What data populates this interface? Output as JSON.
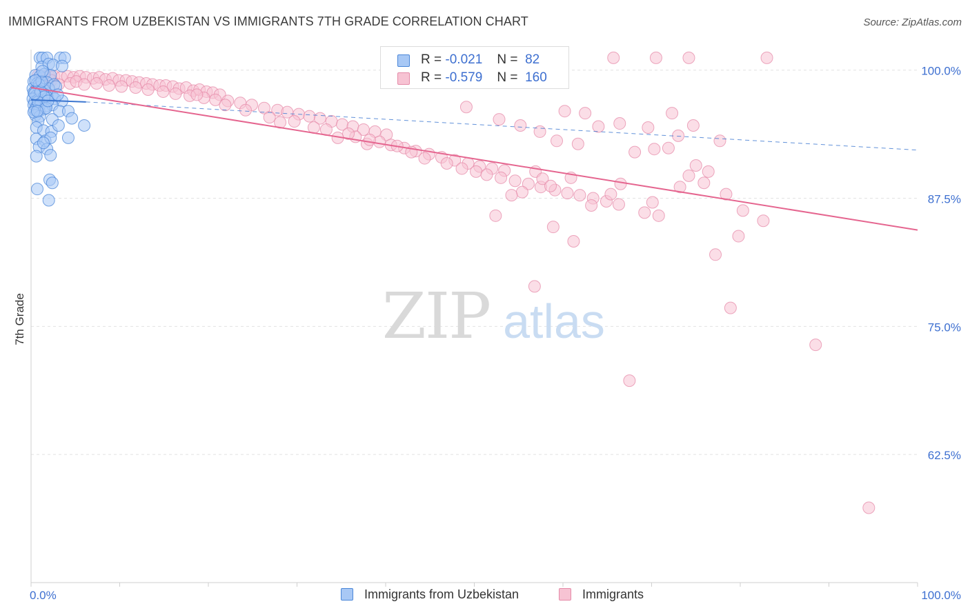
{
  "title": "IMMIGRANTS FROM UZBEKISTAN VS IMMIGRANTS 7TH GRADE CORRELATION CHART",
  "source": "Source: ZipAtlas.com",
  "legend": {
    "rows": [
      {
        "r_label": "R =",
        "r_value": "-0.021",
        "n_label": "N =",
        "n_value": "82"
      },
      {
        "r_label": "R =",
        "r_value": "-0.579",
        "n_label": "N =",
        "n_value": "160"
      }
    ]
  },
  "bottom_legend": [
    "Immigrants from Uzbekistan",
    "Immigrants"
  ],
  "colors": {
    "blue_fill": "#a8c8f5",
    "blue_stroke": "#4a86d8",
    "blue_line": "#3a75d0",
    "pink_fill": "#f7c3d3",
    "pink_stroke": "#e58aa8",
    "pink_line": "#e5658f",
    "tick_label": "#3d6fd0",
    "grid": "#e2e2e2"
  },
  "chart_data": {
    "type": "scatter",
    "title": "IMMIGRANTS FROM UZBEKISTAN VS IMMIGRANTS 7TH GRADE CORRELATION CHART",
    "xlabel": "",
    "ylabel": "7th Grade",
    "xlim": [
      0,
      100
    ],
    "ylim": [
      50,
      102
    ],
    "x_tick_labels": [
      "0.0%",
      "100.0%"
    ],
    "y_ticks": [
      100,
      87.5,
      75,
      62.5
    ],
    "y_tick_labels": [
      "100.0%",
      "87.5%",
      "75.0%",
      "62.5%"
    ],
    "grid": "horizontal dashed",
    "watermark": "ZIPatlas",
    "series": [
      {
        "name": "Immigrants from Uzbekistan",
        "r": -0.021,
        "n": 82,
        "trend": {
          "x": [
            0,
            6.2
          ],
          "y": [
            97.1,
            96.9
          ],
          "x_ext": [
            6.2,
            100
          ],
          "y_ext": [
            96.9,
            92.2
          ]
        },
        "points": [
          [
            1.0,
            101.2
          ],
          [
            1.3,
            101.2
          ],
          [
            1.8,
            101.2
          ],
          [
            3.3,
            101.2
          ],
          [
            3.8,
            101.2
          ],
          [
            1.2,
            100.3
          ],
          [
            2.0,
            100.6
          ],
          [
            2.5,
            100.5
          ],
          [
            3.5,
            100.4
          ],
          [
            0.5,
            99.5
          ],
          [
            1.0,
            99.4
          ],
          [
            1.5,
            99.6
          ],
          [
            2.2,
            99.5
          ],
          [
            0.3,
            98.9
          ],
          [
            0.7,
            98.7
          ],
          [
            1.2,
            98.5
          ],
          [
            1.8,
            98.8
          ],
          [
            2.6,
            98.6
          ],
          [
            0.2,
            98.2
          ],
          [
            0.5,
            98.0
          ],
          [
            0.9,
            98.3
          ],
          [
            1.4,
            98.1
          ],
          [
            2.0,
            98.2
          ],
          [
            0.3,
            97.8
          ],
          [
            0.6,
            97.5
          ],
          [
            1.0,
            97.7
          ],
          [
            1.6,
            97.6
          ],
          [
            2.4,
            97.5
          ],
          [
            0.2,
            97.2
          ],
          [
            0.4,
            96.9
          ],
          [
            0.8,
            97.1
          ],
          [
            1.3,
            97.0
          ],
          [
            1.9,
            97.3
          ],
          [
            2.7,
            97.2
          ],
          [
            3.5,
            97.0
          ],
          [
            0.3,
            96.6
          ],
          [
            0.6,
            96.4
          ],
          [
            1.1,
            96.7
          ],
          [
            1.7,
            96.5
          ],
          [
            2.4,
            96.6
          ],
          [
            0.4,
            96.1
          ],
          [
            0.9,
            96.0
          ],
          [
            1.5,
            96.2
          ],
          [
            0.5,
            95.6
          ],
          [
            1.0,
            95.5
          ],
          [
            3.2,
            96.0
          ],
          [
            4.2,
            96.0
          ],
          [
            0.8,
            95.0
          ],
          [
            2.4,
            95.2
          ],
          [
            4.6,
            95.3
          ],
          [
            0.6,
            94.4
          ],
          [
            1.4,
            94.1
          ],
          [
            2.3,
            94.0
          ],
          [
            3.1,
            94.6
          ],
          [
            6.0,
            94.6
          ],
          [
            0.6,
            93.3
          ],
          [
            1.6,
            93.1
          ],
          [
            2.2,
            93.4
          ],
          [
            4.2,
            93.4
          ],
          [
            0.9,
            92.5
          ],
          [
            1.8,
            92.3
          ],
          [
            0.6,
            91.6
          ],
          [
            2.2,
            91.7
          ],
          [
            1.4,
            92.9
          ],
          [
            2.1,
            89.3
          ],
          [
            2.4,
            89.0
          ],
          [
            0.7,
            88.4
          ],
          [
            2.0,
            87.3
          ],
          [
            0.9,
            98.6
          ],
          [
            1.1,
            97.9
          ],
          [
            1.5,
            97.4
          ],
          [
            0.8,
            96.9
          ],
          [
            0.4,
            97.7
          ],
          [
            1.7,
            96.3
          ],
          [
            0.3,
            95.9
          ],
          [
            2.8,
            98.4
          ],
          [
            1.2,
            98.9
          ],
          [
            0.5,
            99.0
          ],
          [
            1.9,
            97.0
          ],
          [
            3.0,
            97.6
          ],
          [
            0.7,
            96.0
          ],
          [
            1.3,
            99.9
          ]
        ]
      },
      {
        "name": "Immigrants",
        "r": -0.579,
        "n": 160,
        "trend": {
          "x": [
            0,
            100
          ],
          "y": [
            98.3,
            84.4
          ]
        },
        "points": [
          [
            65.7,
            101.2
          ],
          [
            70.5,
            101.2
          ],
          [
            74.2,
            101.2
          ],
          [
            83.0,
            101.2
          ],
          [
            0.8,
            99.5
          ],
          [
            1.5,
            99.4
          ],
          [
            2.0,
            99.5
          ],
          [
            2.6,
            99.4
          ],
          [
            3.4,
            99.3
          ],
          [
            4.1,
            99.4
          ],
          [
            4.8,
            99.3
          ],
          [
            5.5,
            99.4
          ],
          [
            6.2,
            99.3
          ],
          [
            7.0,
            99.2
          ],
          [
            7.7,
            99.3
          ],
          [
            8.4,
            99.1
          ],
          [
            9.2,
            99.2
          ],
          [
            9.9,
            99.0
          ],
          [
            10.7,
            99.0
          ],
          [
            11.4,
            98.9
          ],
          [
            12.2,
            98.8
          ],
          [
            13.0,
            98.7
          ],
          [
            13.7,
            98.6
          ],
          [
            14.5,
            98.5
          ],
          [
            15.2,
            98.5
          ],
          [
            16.0,
            98.4
          ],
          [
            16.7,
            98.2
          ],
          [
            17.5,
            98.3
          ],
          [
            18.3,
            98.0
          ],
          [
            19.0,
            98.1
          ],
          [
            19.8,
            97.9
          ],
          [
            20.5,
            97.8
          ],
          [
            21.3,
            97.6
          ],
          [
            1.2,
            98.8
          ],
          [
            2.3,
            99.0
          ],
          [
            3.1,
            98.6
          ],
          [
            4.4,
            98.7
          ],
          [
            5.1,
            98.9
          ],
          [
            6.0,
            98.6
          ],
          [
            7.4,
            98.7
          ],
          [
            8.8,
            98.5
          ],
          [
            10.2,
            98.4
          ],
          [
            11.8,
            98.3
          ],
          [
            13.2,
            98.1
          ],
          [
            14.9,
            97.9
          ],
          [
            16.3,
            97.7
          ],
          [
            17.9,
            97.5
          ],
          [
            19.5,
            97.3
          ],
          [
            20.8,
            97.1
          ],
          [
            22.2,
            97.0
          ],
          [
            23.6,
            96.8
          ],
          [
            24.9,
            96.6
          ],
          [
            26.3,
            96.3
          ],
          [
            27.8,
            96.1
          ],
          [
            28.9,
            95.9
          ],
          [
            30.2,
            95.7
          ],
          [
            31.4,
            95.5
          ],
          [
            32.6,
            95.3
          ],
          [
            33.9,
            95.0
          ],
          [
            35.1,
            94.7
          ],
          [
            36.3,
            94.5
          ],
          [
            37.5,
            94.2
          ],
          [
            38.8,
            94.0
          ],
          [
            40.1,
            93.7
          ],
          [
            18.7,
            97.6
          ],
          [
            21.9,
            96.6
          ],
          [
            24.2,
            96.1
          ],
          [
            26.9,
            95.4
          ],
          [
            28.1,
            94.9
          ],
          [
            29.7,
            95.0
          ],
          [
            31.9,
            94.4
          ],
          [
            33.3,
            94.2
          ],
          [
            34.6,
            93.4
          ],
          [
            36.6,
            93.5
          ],
          [
            37.9,
            92.8
          ],
          [
            39.3,
            93.0
          ],
          [
            40.6,
            92.7
          ],
          [
            42.1,
            92.4
          ],
          [
            43.4,
            92.1
          ],
          [
            44.9,
            91.8
          ],
          [
            46.3,
            91.5
          ],
          [
            47.8,
            91.2
          ],
          [
            49.3,
            90.9
          ],
          [
            50.6,
            90.6
          ],
          [
            52.0,
            90.4
          ],
          [
            53.4,
            90.2
          ],
          [
            35.8,
            93.8
          ],
          [
            38.2,
            93.2
          ],
          [
            41.3,
            92.6
          ],
          [
            42.9,
            92.0
          ],
          [
            44.4,
            91.4
          ],
          [
            46.9,
            90.9
          ],
          [
            48.6,
            90.4
          ],
          [
            50.2,
            90.1
          ],
          [
            51.4,
            89.8
          ],
          [
            53.0,
            89.5
          ],
          [
            54.6,
            89.2
          ],
          [
            56.1,
            88.9
          ],
          [
            57.5,
            88.6
          ],
          [
            59.1,
            88.3
          ],
          [
            60.5,
            88.0
          ],
          [
            61.9,
            87.8
          ],
          [
            63.4,
            87.5
          ],
          [
            64.9,
            87.2
          ],
          [
            66.3,
            86.9
          ],
          [
            69.2,
            86.1
          ],
          [
            70.8,
            85.8
          ],
          [
            74.2,
            89.7
          ],
          [
            75.9,
            89.0
          ],
          [
            78.4,
            87.9
          ],
          [
            80.3,
            86.3
          ],
          [
            82.6,
            85.3
          ],
          [
            66.5,
            88.9
          ],
          [
            65.4,
            87.9
          ],
          [
            63.2,
            86.8
          ],
          [
            56.9,
            90.1
          ],
          [
            57.7,
            89.4
          ],
          [
            60.9,
            89.5
          ],
          [
            58.6,
            88.7
          ],
          [
            55.4,
            88.1
          ],
          [
            54.2,
            87.8
          ],
          [
            52.4,
            85.8
          ],
          [
            58.9,
            84.7
          ],
          [
            61.2,
            83.3
          ],
          [
            70.1,
            87.1
          ],
          [
            73.2,
            88.6
          ],
          [
            71.9,
            92.4
          ],
          [
            75.0,
            90.7
          ],
          [
            76.4,
            90.1
          ],
          [
            79.8,
            83.8
          ],
          [
            77.2,
            82.0
          ],
          [
            78.9,
            76.8
          ],
          [
            56.8,
            78.9
          ],
          [
            67.5,
            69.7
          ],
          [
            88.5,
            73.2
          ],
          [
            94.5,
            57.3
          ],
          [
            62.5,
            95.8
          ],
          [
            64.0,
            94.5
          ],
          [
            66.4,
            94.8
          ],
          [
            69.6,
            94.4
          ],
          [
            72.3,
            95.8
          ],
          [
            74.7,
            94.6
          ],
          [
            60.2,
            96.0
          ],
          [
            49.1,
            96.4
          ],
          [
            52.8,
            95.2
          ],
          [
            55.2,
            94.6
          ],
          [
            57.4,
            94.0
          ],
          [
            59.3,
            93.1
          ],
          [
            61.7,
            92.8
          ],
          [
            68.1,
            92.0
          ],
          [
            70.3,
            92.3
          ],
          [
            73.0,
            93.6
          ],
          [
            77.7,
            93.1
          ]
        ]
      }
    ]
  }
}
